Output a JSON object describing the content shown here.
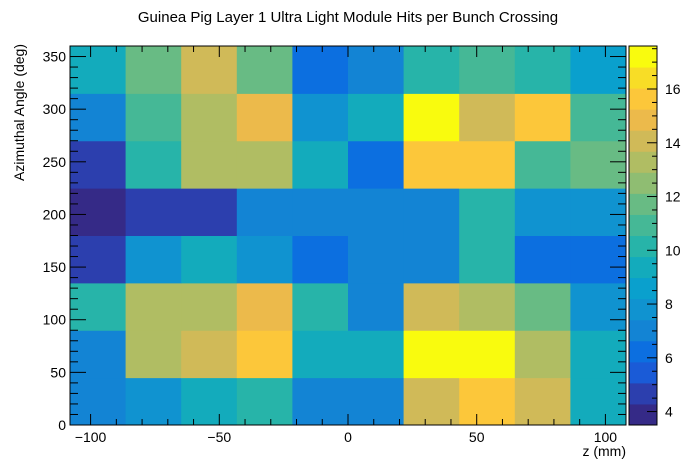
{
  "chart_data": {
    "type": "heatmap",
    "title": "Guinea Pig Layer 1 Ultra Light Module Hits per Bunch Crossing",
    "xlabel": "z (mm)",
    "ylabel": "Azimuthal Angle (deg)",
    "xlim": [
      -108,
      108
    ],
    "ylim": [
      0,
      360
    ],
    "x_bin_edges": [
      -108,
      -86.4,
      -64.8,
      -43.2,
      -21.6,
      0,
      21.6,
      43.2,
      64.8,
      86.4,
      108
    ],
    "y_bin_edges": [
      0,
      45,
      90,
      135,
      180,
      225,
      270,
      315,
      360
    ],
    "x_ticks": [
      -100,
      -50,
      0,
      50,
      100
    ],
    "x_tick_labels": [
      "−100",
      "−50",
      "0",
      "50",
      "100"
    ],
    "y_ticks": [
      0,
      50,
      100,
      150,
      200,
      250,
      300,
      350
    ],
    "y_tick_labels": [
      "0",
      "50",
      "100",
      "150",
      "200",
      "250",
      "300",
      "350"
    ],
    "z_range": [
      3.5,
      17.6
    ],
    "z_ticks": [
      4,
      6,
      8,
      10,
      12,
      14,
      16
    ],
    "z_tick_labels": [
      "4",
      "6",
      "8",
      "10",
      "12",
      "14",
      "16"
    ],
    "palette": [
      "#352a87",
      "#2c3fae",
      "#1a5bd7",
      "#0c6fe0",
      "#1384d4",
      "#1093d0",
      "#0aa0cd",
      "#13abbc",
      "#27b4a9",
      "#45b896",
      "#68bb84",
      "#8fbd72",
      "#b0bd63",
      "#d0ba58",
      "#ecba4b",
      "#fcc73a",
      "#f8dd26",
      "#f9fb0e"
    ],
    "values": [
      [
        7,
        8,
        9,
        10,
        7,
        7,
        14,
        16,
        14,
        9
      ],
      [
        7,
        13,
        14,
        16,
        9,
        9,
        17,
        17.5,
        13,
        9
      ],
      [
        10,
        13,
        13,
        15,
        10,
        7,
        14,
        13,
        12,
        8
      ],
      [
        5,
        8,
        9,
        8,
        6,
        7,
        7,
        10,
        6,
        6
      ],
      [
        4,
        5,
        5,
        7,
        7,
        7,
        7,
        10,
        8,
        7.5
      ],
      [
        5,
        10,
        13,
        13,
        9,
        6,
        15.5,
        16,
        11,
        12
      ],
      [
        7,
        11,
        13,
        15,
        8,
        9,
        17,
        14,
        15.5,
        11
      ],
      [
        9,
        12,
        14,
        12,
        6,
        7,
        10,
        11,
        10,
        8.5
      ]
    ]
  }
}
